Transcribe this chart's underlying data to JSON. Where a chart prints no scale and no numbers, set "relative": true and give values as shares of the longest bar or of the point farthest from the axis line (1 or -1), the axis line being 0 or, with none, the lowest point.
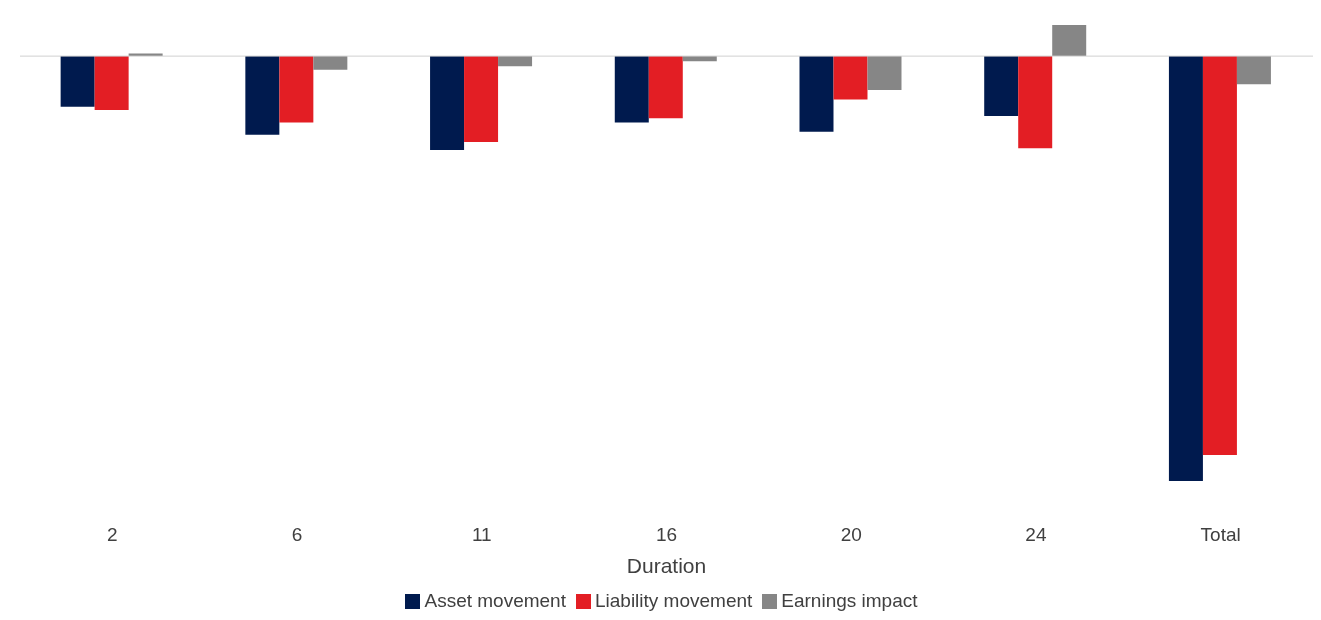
{
  "chart_data": {
    "type": "bar",
    "relative": true,
    "xlabel": "Duration",
    "categories": [
      "2",
      "6",
      "11",
      "16",
      "20",
      "24",
      "Total"
    ],
    "series": [
      {
        "name": "Asset movement",
        "color": "#001a4e",
        "values": [
          -0.119,
          -0.185,
          -0.221,
          -0.156,
          -0.178,
          -0.141,
          -1
        ]
      },
      {
        "name": "Liability movement",
        "color": "#e31e24",
        "values": [
          -0.127,
          -0.156,
          -0.202,
          -0.146,
          -0.102,
          -0.217,
          -0.939
        ]
      },
      {
        "name": "Earnings impact",
        "color": "#868686",
        "values": [
          0.006,
          -0.032,
          -0.024,
          -0.012,
          -0.08,
          0.073,
          -0.066
        ]
      }
    ],
    "legend": "bottom"
  }
}
